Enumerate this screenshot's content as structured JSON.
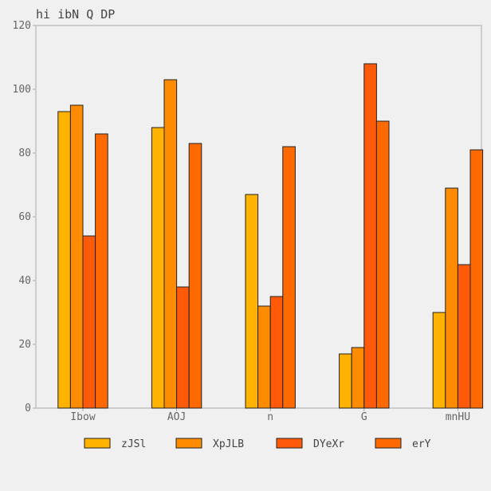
{
  "chart_data": {
    "type": "bar",
    "title": "hi ibN Q  DP",
    "xlabel": "",
    "ylabel": "",
    "categories": [
      "Ibow",
      "AOJ",
      "n",
      "G",
      "mnHU"
    ],
    "series": [
      {
        "name": "zJSl",
        "color": "#ffb300",
        "values": [
          93,
          88,
          67,
          17,
          30
        ]
      },
      {
        "name": "XpJLB",
        "color": "#ff8c00",
        "values": [
          95,
          103,
          32,
          19,
          69
        ]
      },
      {
        "name": "DYeXr",
        "color": "#ff5a0a",
        "values": [
          54,
          38,
          35,
          108,
          45
        ]
      },
      {
        "name": "erY",
        "color": "#ff6a00",
        "values": [
          86,
          83,
          82,
          90,
          81
        ]
      }
    ],
    "ylim": [
      0,
      120
    ],
    "yticks": [
      0,
      20,
      40,
      60,
      80,
      100,
      120
    ],
    "grid": true,
    "legend_position": "bottom"
  },
  "colors": {
    "background": "#f0f0f0",
    "plot_background": "#f0f0f0",
    "grid": "#d0d0d0",
    "axis": "#aaaaaa",
    "bar_stroke": "#222222"
  }
}
